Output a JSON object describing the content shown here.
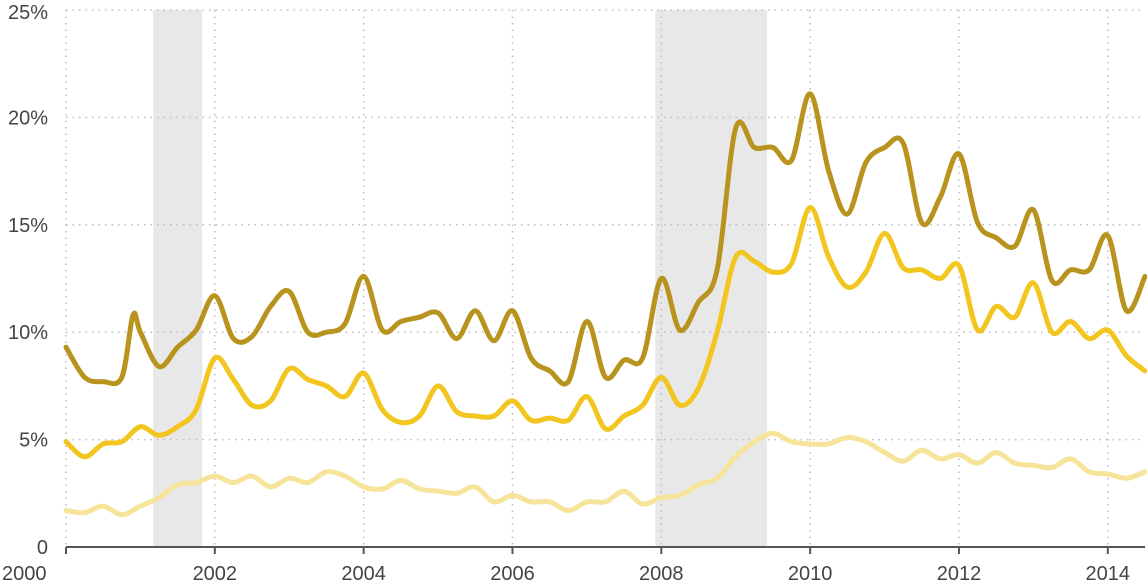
{
  "chart_data": {
    "type": "line",
    "title": "",
    "xlabel": "",
    "ylabel": "",
    "xlim": [
      2000,
      2014.5
    ],
    "ylim": [
      0,
      25
    ],
    "x_ticks": [
      2000,
      2002,
      2004,
      2006,
      2008,
      2010,
      2012,
      2014
    ],
    "x_tick_labels": [
      "2000",
      "2002",
      "2004",
      "2006",
      "2008",
      "2010",
      "2012",
      "2014"
    ],
    "y_ticks": [
      0,
      5,
      10,
      15,
      20,
      25
    ],
    "y_tick_labels": [
      "0",
      "5%",
      "10%",
      "15%",
      "20%",
      "25%"
    ],
    "grid": true,
    "legend": "none",
    "recessions": [
      [
        2001.17,
        2001.83
      ],
      [
        2007.92,
        2009.42
      ]
    ],
    "recession_color": "#e8e8e8",
    "series": [
      {
        "color": "#b8941f",
        "x": [
          2000.0,
          2000.25,
          2000.5,
          2000.75,
          2000.9,
          2001.0,
          2001.25,
          2001.5,
          2001.75,
          2002.0,
          2002.25,
          2002.5,
          2002.75,
          2003.0,
          2003.25,
          2003.5,
          2003.75,
          2004.0,
          2004.25,
          2004.5,
          2004.75,
          2005.0,
          2005.25,
          2005.5,
          2005.75,
          2006.0,
          2006.25,
          2006.5,
          2006.75,
          2007.0,
          2007.25,
          2007.5,
          2007.75,
          2008.0,
          2008.25,
          2008.5,
          2008.75,
          2009.0,
          2009.25,
          2009.5,
          2009.75,
          2010.0,
          2010.25,
          2010.5,
          2010.75,
          2011.0,
          2011.25,
          2011.5,
          2011.75,
          2012.0,
          2012.25,
          2012.5,
          2012.75,
          2013.0,
          2013.25,
          2013.5,
          2013.75,
          2014.0,
          2014.25,
          2014.5
        ],
        "values": [
          9.3,
          7.9,
          7.7,
          7.9,
          10.8,
          10.0,
          8.4,
          9.3,
          10.1,
          11.7,
          9.7,
          9.8,
          11.2,
          11.9,
          10.0,
          10.0,
          10.4,
          12.6,
          10.1,
          10.5,
          10.7,
          10.9,
          9.7,
          11.0,
          9.6,
          11.0,
          8.8,
          8.2,
          7.7,
          10.5,
          7.9,
          8.7,
          8.8,
          12.5,
          10.1,
          11.4,
          12.9,
          19.5,
          18.6,
          18.6,
          18.0,
          21.1,
          17.5,
          15.5,
          17.9,
          18.6,
          18.8,
          15.1,
          16.3,
          18.3,
          15.1,
          14.4,
          14.0,
          15.7,
          12.4,
          12.9,
          12.9,
          14.5,
          11.0,
          12.6
        ]
      },
      {
        "color": "#f2c61f",
        "x": [
          2000.0,
          2000.25,
          2000.5,
          2000.75,
          2001.0,
          2001.25,
          2001.5,
          2001.75,
          2002.0,
          2002.25,
          2002.5,
          2002.75,
          2003.0,
          2003.25,
          2003.5,
          2003.75,
          2004.0,
          2004.25,
          2004.5,
          2004.75,
          2005.0,
          2005.25,
          2005.5,
          2005.75,
          2006.0,
          2006.25,
          2006.5,
          2006.75,
          2007.0,
          2007.25,
          2007.5,
          2007.75,
          2008.0,
          2008.25,
          2008.5,
          2008.75,
          2009.0,
          2009.25,
          2009.5,
          2009.75,
          2010.0,
          2010.25,
          2010.5,
          2010.75,
          2011.0,
          2011.25,
          2011.5,
          2011.75,
          2012.0,
          2012.25,
          2012.5,
          2012.75,
          2013.0,
          2013.25,
          2013.5,
          2013.75,
          2014.0,
          2014.25,
          2014.5
        ],
        "values": [
          4.9,
          4.2,
          4.8,
          4.9,
          5.6,
          5.2,
          5.6,
          6.4,
          8.8,
          7.8,
          6.6,
          6.8,
          8.3,
          7.8,
          7.5,
          7.0,
          8.1,
          6.4,
          5.8,
          6.1,
          7.5,
          6.3,
          6.1,
          6.1,
          6.8,
          5.9,
          6.0,
          5.9,
          7.0,
          5.5,
          6.1,
          6.6,
          7.9,
          6.6,
          7.4,
          10.0,
          13.5,
          13.3,
          12.8,
          13.2,
          15.8,
          13.5,
          12.1,
          12.8,
          14.6,
          13.0,
          12.9,
          12.5,
          13.1,
          10.1,
          11.2,
          10.7,
          12.3,
          10.0,
          10.5,
          9.7,
          10.1,
          8.9,
          8.2
        ]
      },
      {
        "color": "#f7e49b",
        "x": [
          2000.0,
          2000.25,
          2000.5,
          2000.75,
          2001.0,
          2001.25,
          2001.5,
          2001.75,
          2002.0,
          2002.25,
          2002.5,
          2002.75,
          2003.0,
          2003.25,
          2003.5,
          2003.75,
          2004.0,
          2004.25,
          2004.5,
          2004.75,
          2005.0,
          2005.25,
          2005.5,
          2005.75,
          2006.0,
          2006.25,
          2006.5,
          2006.75,
          2007.0,
          2007.25,
          2007.5,
          2007.75,
          2008.0,
          2008.25,
          2008.5,
          2008.75,
          2009.0,
          2009.25,
          2009.5,
          2009.75,
          2010.0,
          2010.25,
          2010.5,
          2010.75,
          2011.0,
          2011.25,
          2011.5,
          2011.75,
          2012.0,
          2012.25,
          2012.5,
          2012.75,
          2013.0,
          2013.25,
          2013.5,
          2013.75,
          2014.0,
          2014.25,
          2014.5
        ],
        "values": [
          1.7,
          1.6,
          1.9,
          1.5,
          1.9,
          2.3,
          2.9,
          3.0,
          3.3,
          3.0,
          3.3,
          2.8,
          3.2,
          3.0,
          3.5,
          3.3,
          2.8,
          2.7,
          3.1,
          2.7,
          2.6,
          2.5,
          2.8,
          2.1,
          2.4,
          2.1,
          2.1,
          1.7,
          2.1,
          2.1,
          2.6,
          2.0,
          2.3,
          2.4,
          2.9,
          3.2,
          4.2,
          4.9,
          5.3,
          4.9,
          4.8,
          4.8,
          5.1,
          4.9,
          4.4,
          4.0,
          4.5,
          4.1,
          4.3,
          3.9,
          4.4,
          3.9,
          3.8,
          3.7,
          4.1,
          3.5,
          3.4,
          3.2,
          3.5
        ]
      }
    ]
  }
}
